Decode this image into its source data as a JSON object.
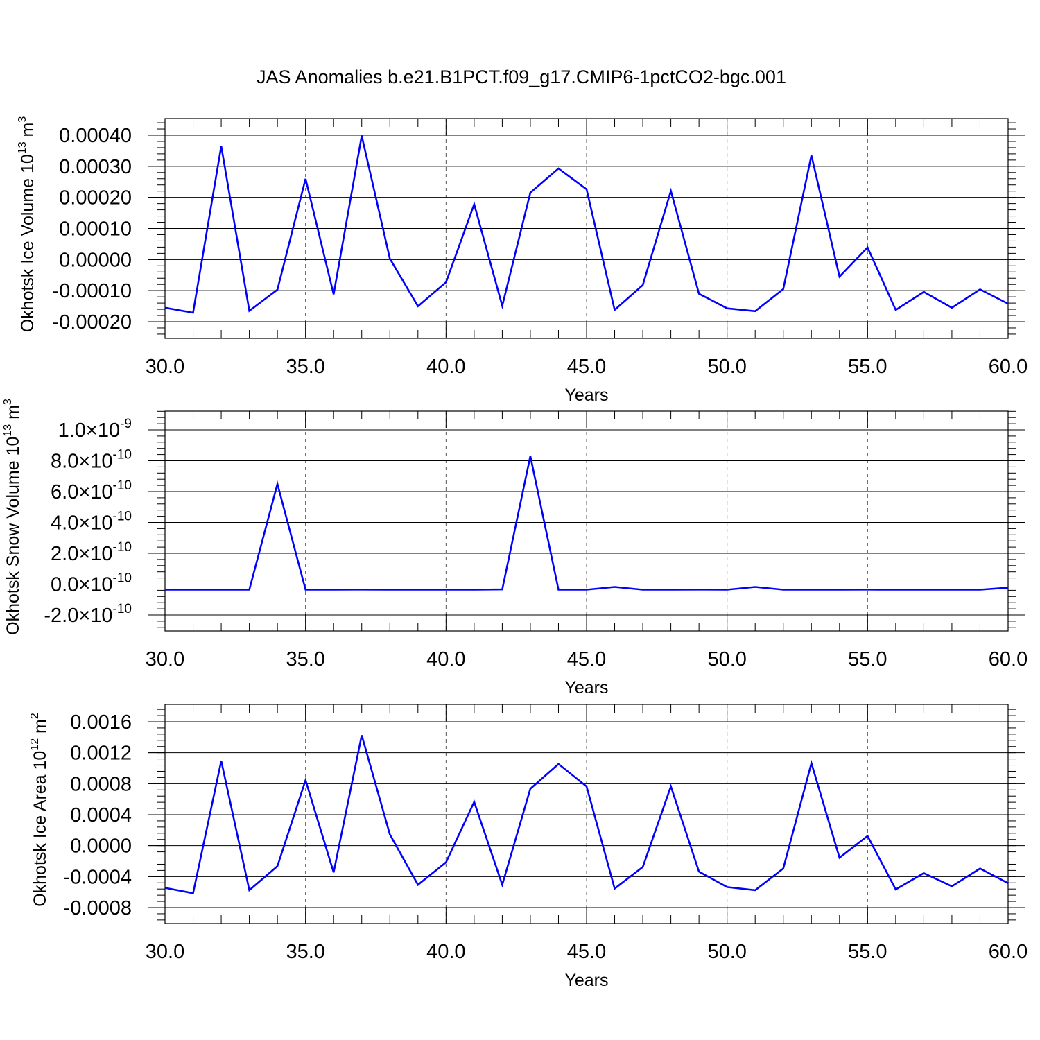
{
  "title": "JAS Anomalies b.e21.B1PCT.f09_g17.CMIP6-1pctCO2-bgc.001",
  "colors": {
    "line": "#0000ff",
    "axis": "#000000",
    "grid": "#555555"
  },
  "chart_data": [
    {
      "type": "line",
      "xlabel": "Years",
      "ylabel": {
        "text": "Okhotsk Ice Volume 10",
        "exp": "13",
        "unit": " m",
        "unit_exp": "3"
      },
      "xlim": [
        30,
        60
      ],
      "ylim": [
        -0.0002,
        0.0004
      ],
      "x_ticks": [
        "30.0",
        "35.0",
        "40.0",
        "45.0",
        "50.0",
        "55.0",
        "60.0"
      ],
      "y_ticks": [
        {
          "v": 0.0004,
          "label": "0.00040"
        },
        {
          "v": 0.0003,
          "label": "0.00030"
        },
        {
          "v": 0.0002,
          "label": "0.00020"
        },
        {
          "v": 0.0001,
          "label": "0.00010"
        },
        {
          "v": 0.0,
          "label": "0.00000"
        },
        {
          "v": -0.0001,
          "label": "-0.00010"
        },
        {
          "v": -0.0002,
          "label": "-0.00020"
        }
      ],
      "x": [
        30,
        31,
        32,
        33,
        34,
        35,
        36,
        37,
        38,
        39,
        40,
        41,
        42,
        43,
        44,
        45,
        46,
        47,
        48,
        49,
        50,
        51,
        52,
        53,
        54,
        55,
        56,
        57,
        58,
        59,
        60
      ],
      "values": [
        -0.000155,
        -0.000171,
        0.000365,
        -0.000165,
        -9.7e-05,
        0.00026,
        -0.000112,
        0.000398,
        3e-06,
        -0.00015,
        -7.3e-05,
        0.000178,
        -0.000149,
        0.000215,
        0.000293,
        0.000226,
        -0.000162,
        -8.2e-05,
        0.000221,
        -0.00011,
        -0.000157,
        -0.000166,
        -9.5e-05,
        0.000335,
        -5.5e-05,
        3.9e-05,
        -0.000162,
        -0.000104,
        -0.000155,
        -9.6e-05,
        -0.000142
      ]
    },
    {
      "type": "line",
      "xlabel": "Years",
      "ylabel": {
        "text": "Okhotsk Snow Volume 10",
        "exp": "13",
        "unit": " m",
        "unit_exp": "3"
      },
      "xlim": [
        30,
        60
      ],
      "ylim": [
        -2e-10,
        1e-09
      ],
      "x_ticks": [
        "30.0",
        "35.0",
        "40.0",
        "45.0",
        "50.0",
        "55.0",
        "60.0"
      ],
      "y_ticks": [
        {
          "v": 1e-09,
          "label": "1.0×10",
          "exp": "-9"
        },
        {
          "v": 8e-10,
          "label": "8.0×10",
          "exp": "-10"
        },
        {
          "v": 6e-10,
          "label": "6.0×10",
          "exp": "-10"
        },
        {
          "v": 4e-10,
          "label": "4.0×10",
          "exp": "-10"
        },
        {
          "v": 2e-10,
          "label": "2.0×10",
          "exp": "-10"
        },
        {
          "v": 0,
          "label": "0.0×10",
          "exp": "-10"
        },
        {
          "v": -2e-10,
          "label": "-2.0×10",
          "exp": "-10"
        }
      ],
      "x": [
        30,
        31,
        32,
        33,
        34,
        35,
        36,
        37,
        38,
        39,
        40,
        41,
        42,
        43,
        44,
        45,
        46,
        47,
        48,
        49,
        50,
        51,
        52,
        53,
        54,
        55,
        56,
        57,
        58,
        59,
        60
      ],
      "values": [
        -3.6e-11,
        -3.6e-11,
        -3.6e-11,
        -3.6e-11,
        6.5e-10,
        -3.6e-11,
        -3.6e-11,
        -3.5e-11,
        -3.6e-11,
        -3.6e-11,
        -3.6e-11,
        -3.6e-11,
        -3.4e-11,
        8.3e-10,
        -3.6e-11,
        -3.6e-11,
        -1.8e-11,
        -3.6e-11,
        -3.6e-11,
        -3.5e-11,
        -3.6e-11,
        -1.8e-11,
        -3.6e-11,
        -3.6e-11,
        -3.6e-11,
        -3.5e-11,
        -3.6e-11,
        -3.6e-11,
        -3.6e-11,
        -3.6e-11,
        -2.3e-11
      ]
    },
    {
      "type": "line",
      "xlabel": "Years",
      "ylabel": {
        "text": "Okhotsk Ice Area 10",
        "exp": "12",
        "unit": " m",
        "unit_exp": "2"
      },
      "xlim": [
        30,
        60
      ],
      "ylim": [
        -0.0008,
        0.0016
      ],
      "x_ticks": [
        "30.0",
        "35.0",
        "40.0",
        "45.0",
        "50.0",
        "55.0",
        "60.0"
      ],
      "y_ticks": [
        {
          "v": 0.0016,
          "label": "0.0016"
        },
        {
          "v": 0.0012,
          "label": "0.0012"
        },
        {
          "v": 0.0008,
          "label": "0.0008"
        },
        {
          "v": 0.0004,
          "label": "0.0004"
        },
        {
          "v": 0.0,
          "label": "0.0000"
        },
        {
          "v": -0.0004,
          "label": "-0.0004"
        },
        {
          "v": -0.0008,
          "label": "-0.0008"
        }
      ],
      "x": [
        30,
        31,
        32,
        33,
        34,
        35,
        36,
        37,
        38,
        39,
        40,
        41,
        42,
        43,
        44,
        45,
        46,
        47,
        48,
        49,
        50,
        51,
        52,
        53,
        54,
        55,
        56,
        57,
        58,
        59,
        60
      ],
      "values": [
        -0.000545,
        -0.000615,
        0.001095,
        -0.000575,
        -0.000265,
        0.000845,
        -0.000345,
        0.001425,
        0.000145,
        -0.000505,
        -0.000215,
        0.000565,
        -0.000505,
        0.000735,
        0.001055,
        0.000765,
        -0.000555,
        -0.000275,
        0.000765,
        -0.000335,
        -0.000535,
        -0.000575,
        -0.000295,
        0.001065,
        -0.000155,
        0.000125,
        -0.000565,
        -0.000355,
        -0.000525,
        -0.000295,
        -0.000485
      ]
    }
  ]
}
